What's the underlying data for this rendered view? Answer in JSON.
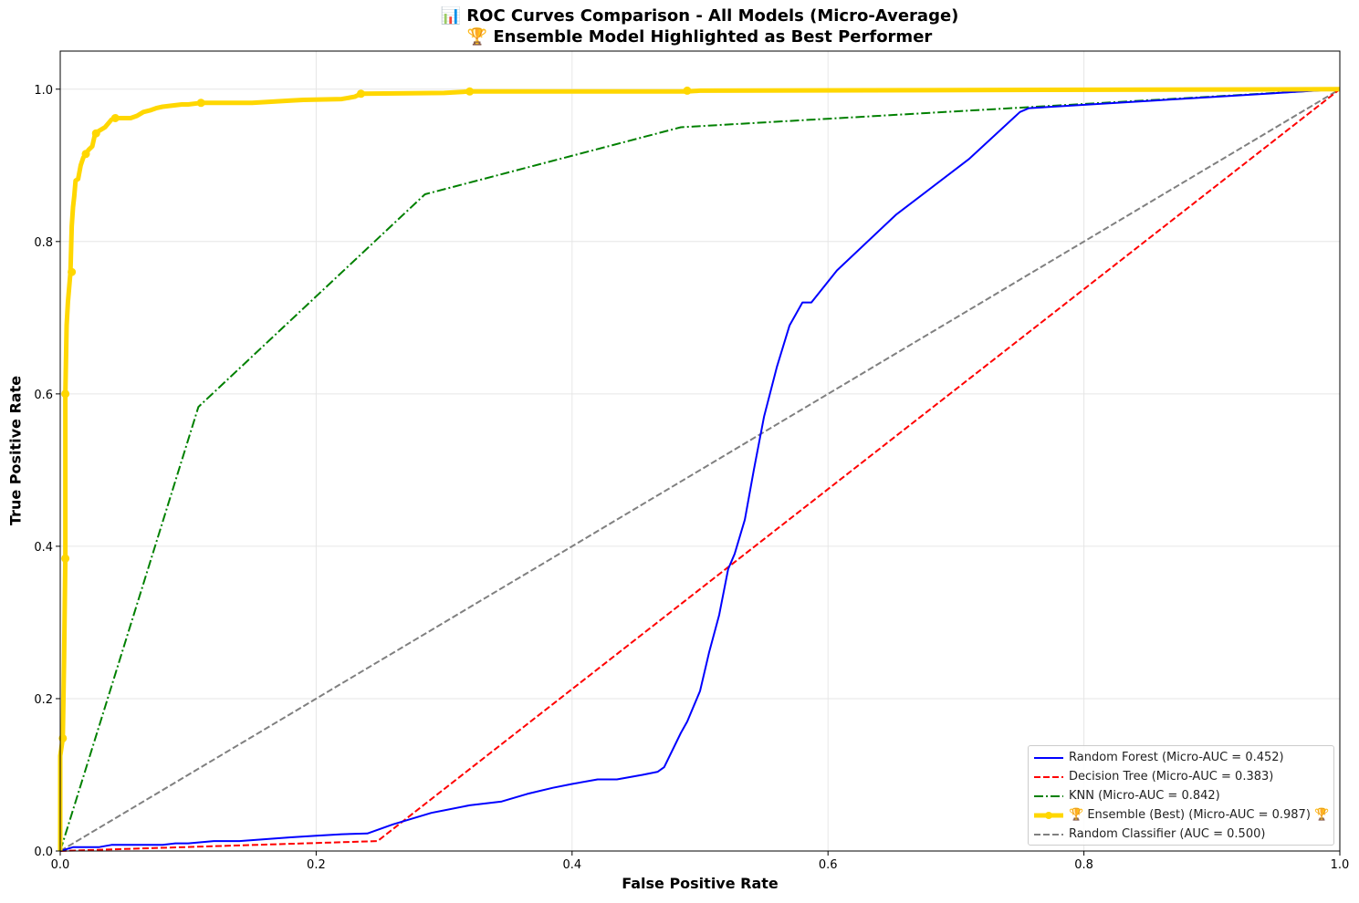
{
  "chart_data": {
    "type": "line",
    "title": "📊 ROC Curves Comparison - All Models (Micro-Average)",
    "subtitle": "🏆 Ensemble Model Highlighted as Best Performer",
    "xlabel": "False Positive Rate",
    "ylabel": "True Positive Rate",
    "xlim": [
      0,
      1.0
    ],
    "ylim": [
      0,
      1.05
    ],
    "xticks": [
      "0.0",
      "0.2",
      "0.4",
      "0.6",
      "0.8",
      "1.0"
    ],
    "yticks": [
      "0.0",
      "0.2",
      "0.4",
      "0.6",
      "0.8",
      "1.0"
    ],
    "grid": true,
    "legend_position": "lower-right",
    "series": [
      {
        "name": "Random Forest (Micro-AUC = 0.452)",
        "color": "#0000ff",
        "style": "solid",
        "x": [
          0,
          0.01,
          0.03,
          0.04,
          0.08,
          0.09,
          0.1,
          0.12,
          0.14,
          0.18,
          0.2,
          0.22,
          0.24,
          0.26,
          0.29,
          0.32,
          0.345,
          0.365,
          0.385,
          0.4,
          0.42,
          0.435,
          0.455,
          0.467,
          0.472,
          0.485,
          0.49,
          0.5,
          0.507,
          0.515,
          0.522,
          0.527,
          0.535,
          0.542,
          0.55,
          0.56,
          0.57,
          0.58,
          0.587,
          0.607,
          0.653,
          0.71,
          0.75,
          0.757,
          1.0
        ],
        "y": [
          0,
          0.005,
          0.005,
          0.008,
          0.008,
          0.01,
          0.01,
          0.013,
          0.013,
          0.018,
          0.02,
          0.022,
          0.023,
          0.035,
          0.05,
          0.06,
          0.065,
          0.075,
          0.083,
          0.088,
          0.094,
          0.094,
          0.1,
          0.104,
          0.11,
          0.155,
          0.17,
          0.21,
          0.26,
          0.31,
          0.37,
          0.39,
          0.435,
          0.5,
          0.57,
          0.635,
          0.69,
          0.72,
          0.72,
          0.762,
          0.835,
          0.908,
          0.97,
          0.975,
          1.0
        ]
      },
      {
        "name": "Decision Tree (Micro-AUC = 0.383)",
        "color": "#ff0000",
        "style": "dashed",
        "x": [
          0,
          0.248,
          1.0
        ],
        "y": [
          0,
          0.013,
          1.0
        ]
      },
      {
        "name": "KNN (Micro-AUC = 0.842)",
        "color": "#008000",
        "style": "dashdot",
        "x": [
          0,
          0.108,
          0.285,
          0.485,
          1.0
        ],
        "y": [
          0,
          0.583,
          0.862,
          0.95,
          1.0
        ]
      },
      {
        "name": "🏆 Ensemble (Best) (Micro-AUC = 0.987) 🏆",
        "color": "#ffd700",
        "style": "solid-thick-markers",
        "x": [
          0,
          0,
          0.002,
          0.003,
          0.004,
          0.004,
          0.005,
          0.006,
          0.007,
          0.008,
          0.009,
          0.01,
          0.011,
          0.012,
          0.014,
          0.016,
          0.018,
          0.02,
          0.022,
          0.025,
          0.027,
          0.028,
          0.03,
          0.035,
          0.04,
          0.043,
          0.055,
          0.06,
          0.065,
          0.07,
          0.075,
          0.08,
          0.095,
          0.1,
          0.11,
          0.15,
          0.18,
          0.19,
          0.22,
          0.23,
          0.235,
          0.3,
          0.32,
          0.49,
          0.5,
          1.0
        ],
        "y": [
          0,
          0.125,
          0.148,
          0.25,
          0.384,
          0.6,
          0.69,
          0.72,
          0.74,
          0.76,
          0.82,
          0.845,
          0.86,
          0.88,
          0.882,
          0.9,
          0.91,
          0.915,
          0.92,
          0.925,
          0.94,
          0.942,
          0.945,
          0.95,
          0.96,
          0.962,
          0.962,
          0.965,
          0.97,
          0.972,
          0.975,
          0.977,
          0.98,
          0.98,
          0.982,
          0.982,
          0.985,
          0.986,
          0.987,
          0.99,
          0.994,
          0.995,
          0.997,
          0.997,
          0.998,
          1.0
        ],
        "markers_x": [
          0.002,
          0.004,
          0.004,
          0.009,
          0.02,
          0.028,
          0.043,
          0.11,
          0.235,
          0.32,
          0.49
        ],
        "markers_y": [
          0.148,
          0.384,
          0.6,
          0.76,
          0.915,
          0.942,
          0.962,
          0.982,
          0.994,
          0.997,
          0.998
        ]
      },
      {
        "name": "Random Classifier (AUC = 0.500)",
        "color": "#808080",
        "style": "dashed",
        "x": [
          0,
          1.0
        ],
        "y": [
          0,
          1.0
        ]
      }
    ]
  }
}
